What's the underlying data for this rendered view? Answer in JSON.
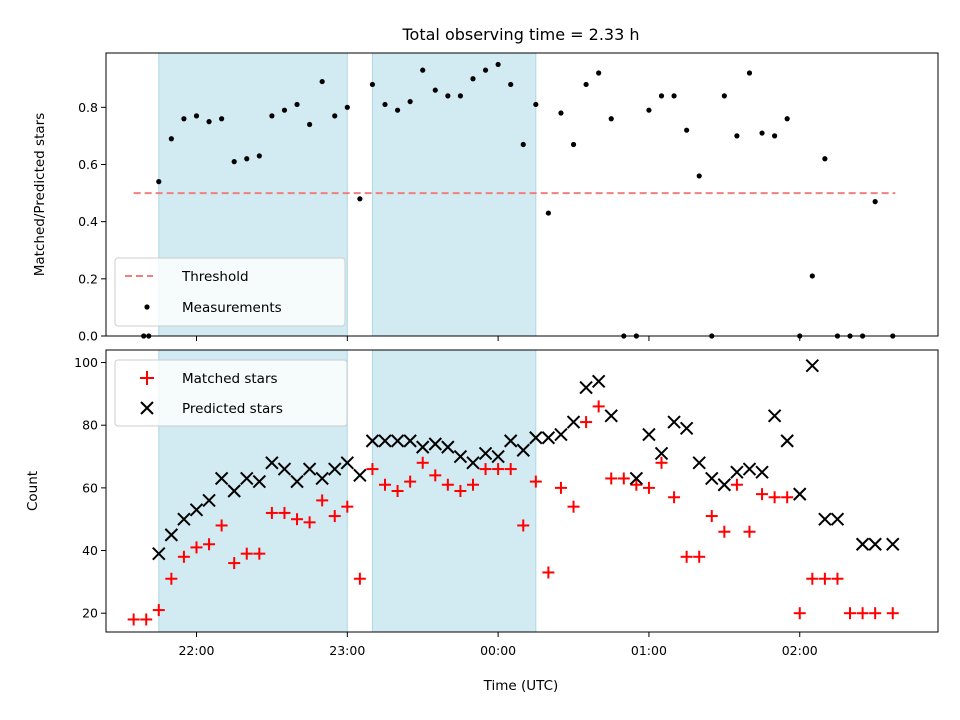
{
  "title": "Total observing time = 2.33 h",
  "colors": {
    "shade": "#add8e6",
    "threshold": "#f08080",
    "measurement": "#000000",
    "matched": "#ff0000",
    "predicted": "#000000"
  },
  "x_axis": {
    "label": "Time (UTC)",
    "range": [
      "21:24",
      "02:55"
    ],
    "ticks": [
      {
        "t": "22:00",
        "label": "22:00"
      },
      {
        "t": "23:00",
        "label": "23:00"
      },
      {
        "t": "00:00",
        "label": "00:00"
      },
      {
        "t": "01:00",
        "label": "01:00"
      },
      {
        "t": "02:00",
        "label": "02:00"
      }
    ]
  },
  "shaded_intervals": [
    {
      "start": "21:45",
      "end": "23:00"
    },
    {
      "start": "23:10",
      "end": "00:15"
    }
  ],
  "chart_data": [
    {
      "type": "scatter",
      "ylabel": "Matched/Predicted stars",
      "ylim": [
        0,
        0.99
      ],
      "yticks": [
        "0.0",
        "0.2",
        "0.4",
        "0.6",
        "0.8"
      ],
      "legend": {
        "placement": "lower-left",
        "entries": [
          "Threshold",
          "Measurements"
        ]
      },
      "threshold": {
        "name": "Threshold",
        "y": 0.5,
        "x_start": "21:35",
        "x_end": "02:38"
      },
      "series": [
        {
          "name": "Measurements",
          "x": [
            "21:39",
            "21:41",
            "21:45",
            "21:50",
            "21:55",
            "22:00",
            "22:05",
            "22:10",
            "22:15",
            "22:20",
            "22:25",
            "22:30",
            "22:35",
            "22:40",
            "22:45",
            "22:50",
            "22:55",
            "23:00",
            "23:05",
            "23:10",
            "23:15",
            "23:20",
            "23:25",
            "23:30",
            "23:35",
            "23:40",
            "23:45",
            "23:50",
            "23:55",
            "00:00",
            "00:05",
            "00:10",
            "00:15",
            "00:20",
            "00:25",
            "00:30",
            "00:35",
            "00:40",
            "00:45",
            "00:50",
            "00:55",
            "01:00",
            "01:05",
            "01:10",
            "01:15",
            "01:20",
            "01:25",
            "01:30",
            "01:35",
            "01:40",
            "01:45",
            "01:50",
            "01:55",
            "02:00",
            "02:05",
            "02:10",
            "02:15",
            "02:20",
            "02:25",
            "02:30",
            "02:37"
          ],
          "y": [
            0.0,
            0.0,
            0.54,
            0.69,
            0.76,
            0.77,
            0.75,
            0.76,
            0.61,
            0.62,
            0.63,
            0.77,
            0.79,
            0.81,
            0.74,
            0.89,
            0.77,
            0.8,
            0.48,
            0.88,
            0.81,
            0.79,
            0.82,
            0.93,
            0.86,
            0.84,
            0.84,
            0.9,
            0.93,
            0.95,
            0.88,
            0.67,
            0.81,
            0.43,
            0.78,
            0.67,
            0.88,
            0.92,
            0.76,
            0.0,
            0.0,
            0.79,
            0.84,
            0.84,
            0.72,
            0.56,
            0.0,
            0.84,
            0.7,
            0.92,
            0.71,
            0.7,
            0.76,
            0.0,
            0.21,
            0.62,
            0.0,
            0.0,
            0.0,
            0.47,
            0.0
          ]
        }
      ]
    },
    {
      "type": "scatter",
      "ylabel": "Count",
      "ylim": [
        14,
        104
      ],
      "yticks": [
        "20",
        "40",
        "60",
        "80",
        "100"
      ],
      "legend": {
        "placement": "top-left",
        "entries": [
          "Matched stars",
          "Predicted stars"
        ]
      },
      "series": [
        {
          "name": "Matched stars",
          "marker": "+",
          "x": [
            "21:35",
            "21:40",
            "21:45",
            "21:50",
            "21:55",
            "22:00",
            "22:05",
            "22:10",
            "22:15",
            "22:20",
            "22:25",
            "22:30",
            "22:35",
            "22:40",
            "22:45",
            "22:50",
            "22:55",
            "23:00",
            "23:05",
            "23:10",
            "23:15",
            "23:20",
            "23:25",
            "23:30",
            "23:35",
            "23:40",
            "23:45",
            "23:50",
            "23:55",
            "00:00",
            "00:05",
            "00:10",
            "00:15",
            "00:20",
            "00:25",
            "00:30",
            "00:35",
            "00:40",
            "00:45",
            "00:50",
            "00:55",
            "01:00",
            "01:05",
            "01:10",
            "01:15",
            "01:20",
            "01:25",
            "01:30",
            "01:35",
            "01:40",
            "01:45",
            "01:50",
            "01:55",
            "02:00",
            "02:05",
            "02:10",
            "02:15",
            "02:20",
            "02:25",
            "02:30",
            "02:37"
          ],
          "y": [
            18,
            18,
            21,
            31,
            38,
            41,
            42,
            48,
            36,
            39,
            39,
            52,
            52,
            50,
            49,
            56,
            51,
            54,
            31,
            66,
            61,
            59,
            62,
            68,
            64,
            61,
            59,
            61,
            66,
            66,
            66,
            48,
            62,
            33,
            60,
            54,
            81,
            86,
            63,
            63,
            61,
            60,
            68,
            57,
            38,
            38,
            51,
            46,
            61,
            46,
            58,
            57,
            57,
            20,
            31,
            31,
            31,
            20,
            20,
            20,
            20
          ],
          "_note_hidden": false
        },
        {
          "name": "Predicted stars",
          "marker": "x",
          "x": [
            "21:45",
            "21:50",
            "21:55",
            "22:00",
            "22:05",
            "22:10",
            "22:15",
            "22:20",
            "22:25",
            "22:30",
            "22:35",
            "22:40",
            "22:45",
            "22:50",
            "22:55",
            "23:00",
            "23:05",
            "23:10",
            "23:15",
            "23:20",
            "23:25",
            "23:30",
            "23:35",
            "23:40",
            "23:45",
            "23:50",
            "23:55",
            "00:00",
            "00:05",
            "00:10",
            "00:15",
            "00:20",
            "00:25",
            "00:30",
            "00:35",
            "00:40",
            "00:45",
            "00:55",
            "01:00",
            "01:05",
            "01:10",
            "01:15",
            "01:20",
            "01:25",
            "01:30",
            "01:35",
            "01:40",
            "01:45",
            "01:50",
            "01:55",
            "02:00",
            "02:05",
            "02:10",
            "02:15",
            "02:25",
            "02:30",
            "02:37"
          ],
          "y": [
            39,
            45,
            50,
            53,
            56,
            63,
            59,
            63,
            62,
            68,
            66,
            62,
            66,
            63,
            66,
            68,
            64,
            75,
            75,
            75,
            75,
            73,
            74,
            73,
            70,
            68,
            71,
            70,
            75,
            72,
            76,
            76,
            77,
            81,
            92,
            94,
            83,
            63,
            77,
            71,
            81,
            79,
            68,
            63,
            61,
            65,
            66,
            65,
            83,
            75,
            58,
            99,
            50,
            50,
            42,
            42,
            42
          ]
        }
      ]
    }
  ]
}
